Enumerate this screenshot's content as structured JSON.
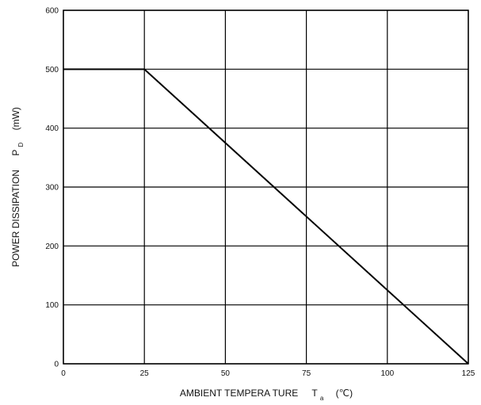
{
  "chart_data": {
    "type": "line",
    "xlabel": {
      "main": "AMBIENT TEMPERA TURE",
      "symbol": "T",
      "subscript": "a",
      "unit": "(℃)"
    },
    "ylabel": {
      "main": "POWER DISSIPATION",
      "symbol": "P",
      "subscript": "D",
      "unit": "(mW)"
    },
    "xlim": [
      0,
      125
    ],
    "ylim": [
      0,
      600
    ],
    "xticks": [
      0,
      25,
      50,
      75,
      100,
      125
    ],
    "yticks": [
      0,
      100,
      200,
      300,
      400,
      500,
      600
    ],
    "grid": true,
    "series": [
      {
        "x": [
          0,
          25,
          125
        ],
        "y": [
          500,
          500,
          0
        ]
      }
    ]
  }
}
